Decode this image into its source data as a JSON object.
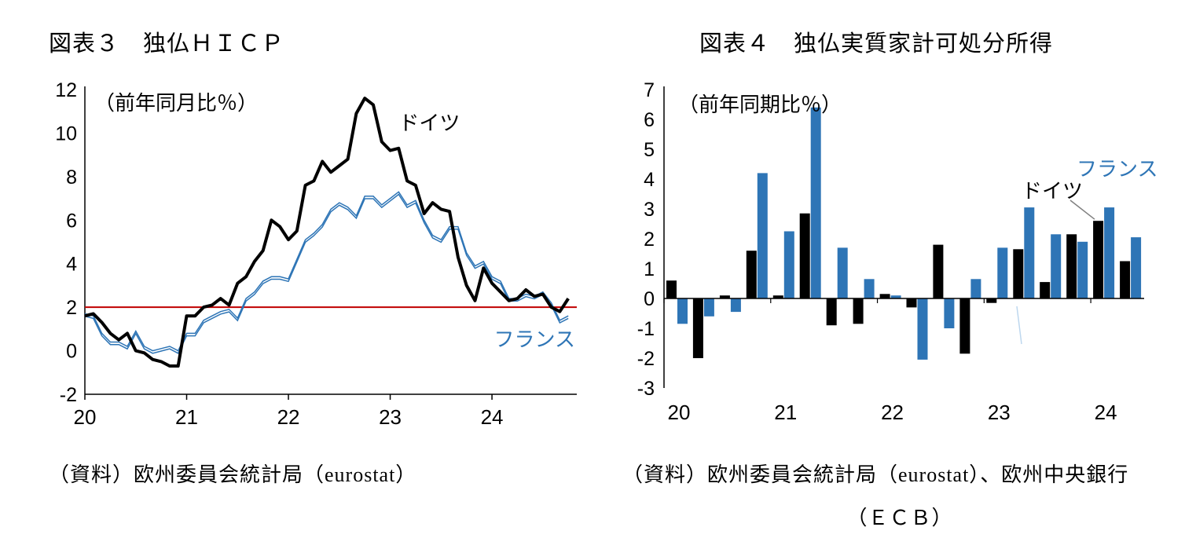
{
  "figure3": {
    "source": "（資料）欧州委員会統計局（eurostat）"
  },
  "figure4": {
    "source_line1": "（資料）欧州委員会統計局（eurostat）、欧州中央銀行",
    "source_line2": "（ＥＣＢ）"
  },
  "colors": {
    "germany": "#000000",
    "france": "#2e75b6",
    "reference_red": "#c00000",
    "leader_gray": "#808080",
    "leader_light_blue": "#bdd7ee"
  },
  "chart_data": [
    {
      "type": "line",
      "title": "図表３　独仏ＨＩＣＰ",
      "unit_label": "（前年同月比％）",
      "x_start": "2020-01",
      "x_freq": "monthly",
      "x_tick_labels": [
        "20",
        "21",
        "22",
        "23",
        "24"
      ],
      "ylim": [
        -2,
        12
      ],
      "ytick_step": 2,
      "grid": false,
      "reference_line": {
        "value": 2,
        "color": "#c00000"
      },
      "series": [
        {
          "name": "ドイツ",
          "color": "#000000",
          "style": "solid-thick",
          "values": [
            1.6,
            1.7,
            1.3,
            0.8,
            0.5,
            0.8,
            0.0,
            -0.1,
            -0.4,
            -0.5,
            -0.7,
            -0.7,
            1.6,
            1.6,
            2.0,
            2.1,
            2.4,
            2.1,
            3.1,
            3.4,
            4.1,
            4.6,
            6.0,
            5.7,
            5.1,
            5.5,
            7.6,
            7.8,
            8.7,
            8.2,
            8.5,
            8.8,
            10.9,
            11.6,
            11.3,
            9.6,
            9.2,
            9.3,
            7.8,
            7.6,
            6.3,
            6.8,
            6.5,
            6.4,
            4.3,
            3.0,
            2.3,
            3.8,
            3.1,
            2.7,
            2.3,
            2.4,
            2.8,
            2.5,
            2.6,
            2.0,
            1.8,
            2.4
          ]
        },
        {
          "name": "フランス",
          "color": "#2e75b6",
          "style": "double-thin",
          "values": [
            1.7,
            1.6,
            0.8,
            0.4,
            0.4,
            0.2,
            0.9,
            0.2,
            0.0,
            0.1,
            0.2,
            0.0,
            0.8,
            0.8,
            1.4,
            1.6,
            1.8,
            1.9,
            1.5,
            2.4,
            2.7,
            3.2,
            3.4,
            3.4,
            3.3,
            4.2,
            5.1,
            5.4,
            5.8,
            6.5,
            6.8,
            6.6,
            6.2,
            7.1,
            7.1,
            6.7,
            7.0,
            7.3,
            6.7,
            6.9,
            6.0,
            5.3,
            5.1,
            5.7,
            5.7,
            4.5,
            3.9,
            4.1,
            3.4,
            3.2,
            2.4,
            2.4,
            2.6,
            2.5,
            2.7,
            2.2,
            1.4,
            1.6
          ]
        }
      ]
    },
    {
      "type": "bar",
      "title": "図表４　独仏実質家計可処分所得",
      "unit_label": "（前年同期比％）",
      "x_tick_labels": [
        "20",
        "21",
        "22",
        "23",
        "24"
      ],
      "ylim": [
        -3,
        7
      ],
      "ytick_step": 1,
      "grid": false,
      "categories": [
        "2020Q1",
        "2020Q2",
        "2020Q3",
        "2020Q4",
        "2021Q1",
        "2021Q2",
        "2021Q3",
        "2021Q4",
        "2022Q1",
        "2022Q2",
        "2022Q3",
        "2022Q4",
        "2023Q1",
        "2023Q2",
        "2023Q3",
        "2023Q4",
        "2024Q1",
        "2024Q2"
      ],
      "series": [
        {
          "name": "ドイツ",
          "color": "#000000",
          "values": [
            0.6,
            -2.0,
            0.1,
            1.6,
            0.1,
            2.85,
            -0.9,
            -0.85,
            0.15,
            -0.3,
            1.8,
            -1.85,
            -0.15,
            1.65,
            0.55,
            2.15,
            2.6,
            1.25
          ]
        },
        {
          "name": "フランス",
          "color": "#2e75b6",
          "values": [
            -0.85,
            -0.6,
            -0.45,
            4.2,
            2.25,
            6.4,
            1.7,
            0.65,
            0.1,
            -2.05,
            -1.0,
            0.65,
            1.7,
            3.05,
            2.15,
            1.9,
            3.05,
            2.05
          ]
        }
      ]
    }
  ]
}
